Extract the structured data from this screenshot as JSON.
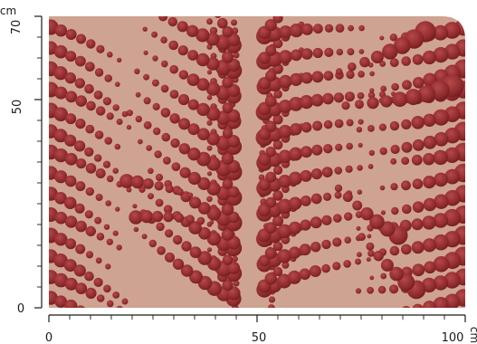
{
  "swatch": {
    "background_color": "#cfa391",
    "pattern_colors": [
      "#8e2a2c",
      "#a6393a",
      "#7a1f22",
      "#b04846"
    ],
    "pattern_description_icon": "beaded-fern-pattern"
  },
  "ruler_x": {
    "unit": "cm",
    "labels": [
      "0",
      "50",
      "100"
    ],
    "values": [
      0,
      50,
      100
    ],
    "range": [
      0,
      100
    ],
    "minor_step": 10
  },
  "ruler_y": {
    "unit": "cm",
    "labels": [
      "0",
      "50",
      "70"
    ],
    "values": [
      0,
      50,
      70
    ],
    "range": [
      0,
      70
    ],
    "minor_step": 10
  }
}
